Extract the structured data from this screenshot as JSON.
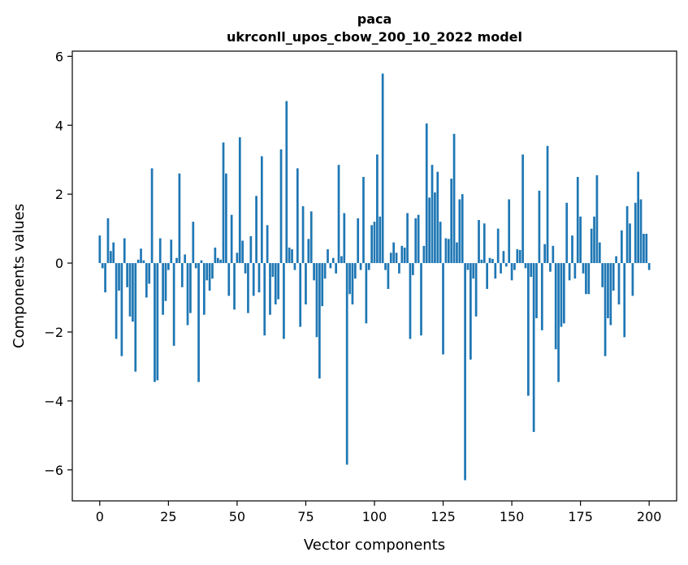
{
  "chart_data": {
    "type": "bar",
    "title": "paca",
    "subtitle": "ukrconll_upos_cbow_200_10_2022 model",
    "xlabel": "Vector components",
    "ylabel": "Components values",
    "xlim": [
      -10,
      210
    ],
    "ylim": [
      -6.9,
      6.15
    ],
    "x_ticks": [
      0,
      25,
      50,
      75,
      100,
      125,
      150,
      175,
      200
    ],
    "y_ticks": [
      -6,
      -4,
      -2,
      0,
      2,
      4,
      6
    ],
    "x_tick_labels": [
      "0",
      "25",
      "50",
      "75",
      "100",
      "125",
      "150",
      "175",
      "200"
    ],
    "y_tick_labels": [
      "−6",
      "−4",
      "−2",
      "0",
      "2",
      "4",
      "6"
    ],
    "grid": false,
    "bar_color": "#1f77b4",
    "values": [
      0.8,
      -0.15,
      -0.85,
      1.3,
      0.35,
      0.6,
      -2.2,
      -0.8,
      -2.7,
      0.72,
      -0.7,
      -1.55,
      -1.7,
      -3.15,
      0.1,
      0.42,
      0.08,
      -1.0,
      -0.6,
      2.75,
      -3.45,
      -3.4,
      0.72,
      -1.5,
      -1.1,
      -0.2,
      0.68,
      -2.4,
      0.15,
      2.6,
      -0.7,
      0.25,
      -1.8,
      -1.45,
      1.2,
      -0.15,
      -3.45,
      0.08,
      -1.5,
      -0.5,
      -0.8,
      -0.45,
      0.45,
      0.15,
      0.1,
      3.5,
      2.6,
      -0.95,
      1.4,
      -1.35,
      0.3,
      3.65,
      0.65,
      -0.3,
      -1.45,
      0.78,
      -0.95,
      1.95,
      -0.85,
      3.1,
      -2.1,
      1.1,
      -1.5,
      -0.4,
      -1.2,
      -1.05,
      3.3,
      -2.2,
      4.7,
      0.45,
      0.4,
      -0.2,
      2.75,
      -1.85,
      1.65,
      -1.2,
      0.7,
      1.5,
      -0.5,
      -2.15,
      -3.35,
      -1.25,
      -0.45,
      0.4,
      -0.15,
      0.15,
      -0.3,
      2.85,
      0.2,
      1.45,
      -5.85,
      -0.9,
      -1.2,
      -0.45,
      1.3,
      -0.2,
      2.5,
      -1.75,
      -0.2,
      1.1,
      1.2,
      3.15,
      1.35,
      5.5,
      -0.2,
      -0.75,
      0.3,
      0.6,
      0.3,
      -0.3,
      0.5,
      0.45,
      1.45,
      -2.2,
      -0.35,
      1.3,
      1.4,
      -2.1,
      0.5,
      4.05,
      1.9,
      2.85,
      2.05,
      2.65,
      1.2,
      -2.65,
      0.72,
      0.7,
      2.45,
      3.75,
      0.6,
      1.85,
      2.0,
      -6.3,
      -0.2,
      -2.8,
      -0.45,
      -1.55,
      1.25,
      0.1,
      1.15,
      -0.75,
      0.15,
      0.12,
      -0.45,
      1.0,
      -0.3,
      0.35,
      -0.1,
      1.85,
      -0.5,
      -0.2,
      0.4,
      0.38,
      3.15,
      -0.15,
      -3.85,
      -0.4,
      -4.9,
      -1.6,
      2.1,
      -1.95,
      0.55,
      3.4,
      -0.25,
      0.5,
      -2.5,
      -3.45,
      -1.85,
      -1.75,
      1.75,
      -0.5,
      0.8,
      -0.45,
      2.5,
      1.35,
      -0.3,
      -0.9,
      -0.9,
      1.0,
      1.35,
      2.55,
      0.6,
      -0.7,
      -2.7,
      -1.6,
      -1.8,
      -0.8,
      0.2,
      -1.2,
      0.95,
      -2.15,
      1.65,
      1.15,
      -0.95,
      1.75,
      2.65,
      1.85,
      0.85,
      0.85,
      -0.2
    ]
  }
}
